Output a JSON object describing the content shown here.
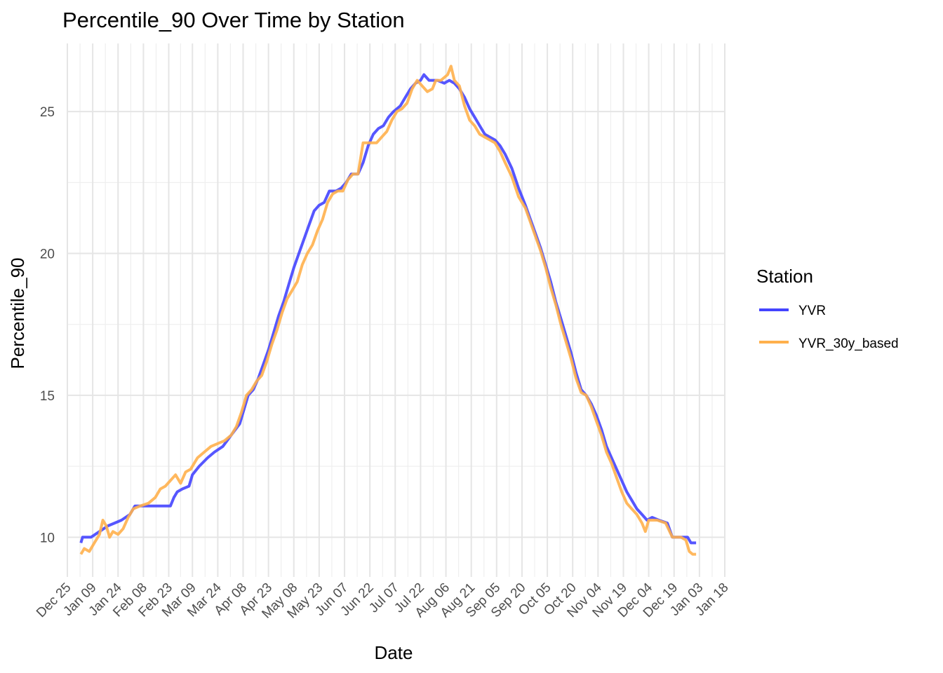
{
  "chart_data": {
    "type": "line",
    "title": "Percentile_90 Over Time by Station",
    "xlabel": "Date",
    "ylabel": "Percentile_90",
    "xlim": [
      -7,
      382
    ],
    "ylim": [
      8.6,
      27.4
    ],
    "x_ticks": [
      {
        "day": -7,
        "label": "Dec 25"
      },
      {
        "day": 8,
        "label": "Jan 09"
      },
      {
        "day": 23,
        "label": "Jan 24"
      },
      {
        "day": 38,
        "label": "Feb 08"
      },
      {
        "day": 53,
        "label": "Feb 23"
      },
      {
        "day": 67,
        "label": "Mar 09"
      },
      {
        "day": 82,
        "label": "Mar 24"
      },
      {
        "day": 97,
        "label": "Apr 08"
      },
      {
        "day": 112,
        "label": "Apr 23"
      },
      {
        "day": 127,
        "label": "May 08"
      },
      {
        "day": 142,
        "label": "May 23"
      },
      {
        "day": 157,
        "label": "Jun 07"
      },
      {
        "day": 172,
        "label": "Jun 22"
      },
      {
        "day": 187,
        "label": "Jul 07"
      },
      {
        "day": 202,
        "label": "Jul 22"
      },
      {
        "day": 217,
        "label": "Aug 06"
      },
      {
        "day": 232,
        "label": "Aug 21"
      },
      {
        "day": 247,
        "label": "Sep 05"
      },
      {
        "day": 262,
        "label": "Sep 20"
      },
      {
        "day": 277,
        "label": "Oct 05"
      },
      {
        "day": 292,
        "label": "Oct 20"
      },
      {
        "day": 307,
        "label": "Nov 04"
      },
      {
        "day": 322,
        "label": "Nov 19"
      },
      {
        "day": 337,
        "label": "Dec 04"
      },
      {
        "day": 352,
        "label": "Dec 19"
      },
      {
        "day": 367,
        "label": "Jan 03"
      },
      {
        "day": 382,
        "label": "Jan 18"
      }
    ],
    "y_ticks": [
      {
        "value": 10,
        "label": "10"
      },
      {
        "value": 15,
        "label": "15"
      },
      {
        "value": 20,
        "label": "20"
      },
      {
        "value": 25,
        "label": "25"
      }
    ],
    "legend_title": "Station",
    "legend_position": "right",
    "series": [
      {
        "name": "YVR",
        "color": "#4444ff",
        "points": [
          [
            1,
            9.8
          ],
          [
            2,
            10.0
          ],
          [
            7,
            10.0
          ],
          [
            12,
            10.2
          ],
          [
            17,
            10.4
          ],
          [
            21,
            10.5
          ],
          [
            25,
            10.6
          ],
          [
            30,
            10.8
          ],
          [
            33,
            11.1
          ],
          [
            40,
            11.1
          ],
          [
            48,
            11.1
          ],
          [
            54,
            11.1
          ],
          [
            56,
            11.4
          ],
          [
            58,
            11.6
          ],
          [
            61,
            11.7
          ],
          [
            65,
            11.8
          ],
          [
            67,
            12.2
          ],
          [
            71,
            12.5
          ],
          [
            76,
            12.8
          ],
          [
            80,
            13.0
          ],
          [
            85,
            13.2
          ],
          [
            90,
            13.6
          ],
          [
            95,
            14.0
          ],
          [
            98,
            14.6
          ],
          [
            100,
            15.0
          ],
          [
            103,
            15.2
          ],
          [
            106,
            15.6
          ],
          [
            109,
            16.1
          ],
          [
            112,
            16.6
          ],
          [
            115,
            17.2
          ],
          [
            118,
            17.8
          ],
          [
            121,
            18.3
          ],
          [
            124,
            18.9
          ],
          [
            127,
            19.5
          ],
          [
            130,
            20.0
          ],
          [
            133,
            20.5
          ],
          [
            136,
            21.0
          ],
          [
            139,
            21.5
          ],
          [
            142,
            21.7
          ],
          [
            145,
            21.8
          ],
          [
            148,
            22.2
          ],
          [
            152,
            22.2
          ],
          [
            155,
            22.3
          ],
          [
            158,
            22.5
          ],
          [
            161,
            22.8
          ],
          [
            165,
            22.8
          ],
          [
            168,
            23.2
          ],
          [
            171,
            23.8
          ],
          [
            174,
            24.2
          ],
          [
            177,
            24.4
          ],
          [
            180,
            24.5
          ],
          [
            183,
            24.8
          ],
          [
            186,
            25.0
          ],
          [
            190,
            25.2
          ],
          [
            193,
            25.5
          ],
          [
            196,
            25.8
          ],
          [
            199,
            26.0
          ],
          [
            202,
            26.1
          ],
          [
            204,
            26.3
          ],
          [
            207,
            26.1
          ],
          [
            212,
            26.1
          ],
          [
            216,
            26.0
          ],
          [
            219,
            26.1
          ],
          [
            222,
            26.0
          ],
          [
            225,
            25.8
          ],
          [
            228,
            25.5
          ],
          [
            231,
            25.1
          ],
          [
            234,
            24.8
          ],
          [
            237,
            24.5
          ],
          [
            240,
            24.2
          ],
          [
            243,
            24.1
          ],
          [
            246,
            24.0
          ],
          [
            249,
            23.8
          ],
          [
            252,
            23.5
          ],
          [
            256,
            23.0
          ],
          [
            260,
            22.3
          ],
          [
            264,
            21.7
          ],
          [
            267,
            21.2
          ],
          [
            270,
            20.7
          ],
          [
            273,
            20.2
          ],
          [
            276,
            19.6
          ],
          [
            279,
            19.0
          ],
          [
            282,
            18.3
          ],
          [
            285,
            17.7
          ],
          [
            288,
            17.1
          ],
          [
            291,
            16.5
          ],
          [
            294,
            15.8
          ],
          [
            297,
            15.2
          ],
          [
            300,
            15.0
          ],
          [
            303,
            14.7
          ],
          [
            306,
            14.3
          ],
          [
            309,
            13.8
          ],
          [
            312,
            13.2
          ],
          [
            315,
            12.8
          ],
          [
            318,
            12.4
          ],
          [
            321,
            12.0
          ],
          [
            324,
            11.6
          ],
          [
            327,
            11.3
          ],
          [
            330,
            11.0
          ],
          [
            333,
            10.8
          ],
          [
            336,
            10.6
          ],
          [
            339,
            10.7
          ],
          [
            343,
            10.6
          ],
          [
            348,
            10.5
          ],
          [
            351,
            10.0
          ],
          [
            356,
            10.0
          ],
          [
            360,
            10.0
          ],
          [
            362,
            9.8
          ],
          [
            365,
            9.8
          ]
        ]
      },
      {
        "name": "YVR_30y_based",
        "color": "#ffb04c",
        "points": [
          [
            1,
            9.4
          ],
          [
            3,
            9.6
          ],
          [
            6,
            9.5
          ],
          [
            9,
            9.8
          ],
          [
            12,
            10.1
          ],
          [
            14,
            10.6
          ],
          [
            16,
            10.4
          ],
          [
            18,
            10.0
          ],
          [
            20,
            10.2
          ],
          [
            23,
            10.1
          ],
          [
            26,
            10.3
          ],
          [
            29,
            10.7
          ],
          [
            32,
            11.0
          ],
          [
            36,
            11.1
          ],
          [
            41,
            11.2
          ],
          [
            45,
            11.4
          ],
          [
            48,
            11.7
          ],
          [
            51,
            11.8
          ],
          [
            54,
            12.0
          ],
          [
            57,
            12.2
          ],
          [
            60,
            11.9
          ],
          [
            63,
            12.3
          ],
          [
            66,
            12.4
          ],
          [
            70,
            12.8
          ],
          [
            74,
            13.0
          ],
          [
            78,
            13.2
          ],
          [
            82,
            13.3
          ],
          [
            86,
            13.4
          ],
          [
            90,
            13.6
          ],
          [
            93,
            13.9
          ],
          [
            96,
            14.4
          ],
          [
            99,
            15.0
          ],
          [
            102,
            15.2
          ],
          [
            105,
            15.5
          ],
          [
            108,
            15.7
          ],
          [
            111,
            16.2
          ],
          [
            114,
            16.8
          ],
          [
            117,
            17.3
          ],
          [
            120,
            17.9
          ],
          [
            123,
            18.4
          ],
          [
            126,
            18.7
          ],
          [
            129,
            19.0
          ],
          [
            132,
            19.6
          ],
          [
            135,
            20.0
          ],
          [
            138,
            20.3
          ],
          [
            141,
            20.8
          ],
          [
            144,
            21.2
          ],
          [
            147,
            21.8
          ],
          [
            150,
            22.1
          ],
          [
            153,
            22.2
          ],
          [
            156,
            22.2
          ],
          [
            159,
            22.6
          ],
          [
            162,
            22.8
          ],
          [
            165,
            22.8
          ],
          [
            168,
            23.9
          ],
          [
            172,
            23.9
          ],
          [
            176,
            23.9
          ],
          [
            179,
            24.1
          ],
          [
            182,
            24.3
          ],
          [
            185,
            24.7
          ],
          [
            188,
            25.0
          ],
          [
            191,
            25.1
          ],
          [
            194,
            25.3
          ],
          [
            197,
            25.8
          ],
          [
            200,
            26.1
          ],
          [
            203,
            25.9
          ],
          [
            206,
            25.7
          ],
          [
            209,
            25.8
          ],
          [
            211,
            26.1
          ],
          [
            214,
            26.1
          ],
          [
            218,
            26.3
          ],
          [
            220,
            26.6
          ],
          [
            222,
            26.1
          ],
          [
            225,
            25.9
          ],
          [
            228,
            25.2
          ],
          [
            231,
            24.7
          ],
          [
            234,
            24.5
          ],
          [
            237,
            24.2
          ],
          [
            240,
            24.1
          ],
          [
            243,
            24.0
          ],
          [
            246,
            23.9
          ],
          [
            249,
            23.6
          ],
          [
            252,
            23.2
          ],
          [
            256,
            22.7
          ],
          [
            260,
            22.0
          ],
          [
            264,
            21.6
          ],
          [
            267,
            21.1
          ],
          [
            270,
            20.6
          ],
          [
            273,
            20.1
          ],
          [
            276,
            19.5
          ],
          [
            279,
            18.8
          ],
          [
            282,
            18.2
          ],
          [
            285,
            17.5
          ],
          [
            288,
            16.9
          ],
          [
            291,
            16.3
          ],
          [
            294,
            15.6
          ],
          [
            297,
            15.1
          ],
          [
            300,
            15.0
          ],
          [
            303,
            14.6
          ],
          [
            306,
            14.1
          ],
          [
            309,
            13.6
          ],
          [
            312,
            13.0
          ],
          [
            315,
            12.6
          ],
          [
            318,
            12.1
          ],
          [
            321,
            11.6
          ],
          [
            324,
            11.2
          ],
          [
            327,
            11.0
          ],
          [
            330,
            10.8
          ],
          [
            333,
            10.5
          ],
          [
            335,
            10.2
          ],
          [
            337,
            10.6
          ],
          [
            342,
            10.6
          ],
          [
            347,
            10.5
          ],
          [
            351,
            10.0
          ],
          [
            356,
            10.0
          ],
          [
            359,
            9.9
          ],
          [
            361,
            9.5
          ],
          [
            363,
            9.4
          ],
          [
            365,
            9.4
          ]
        ]
      }
    ]
  }
}
